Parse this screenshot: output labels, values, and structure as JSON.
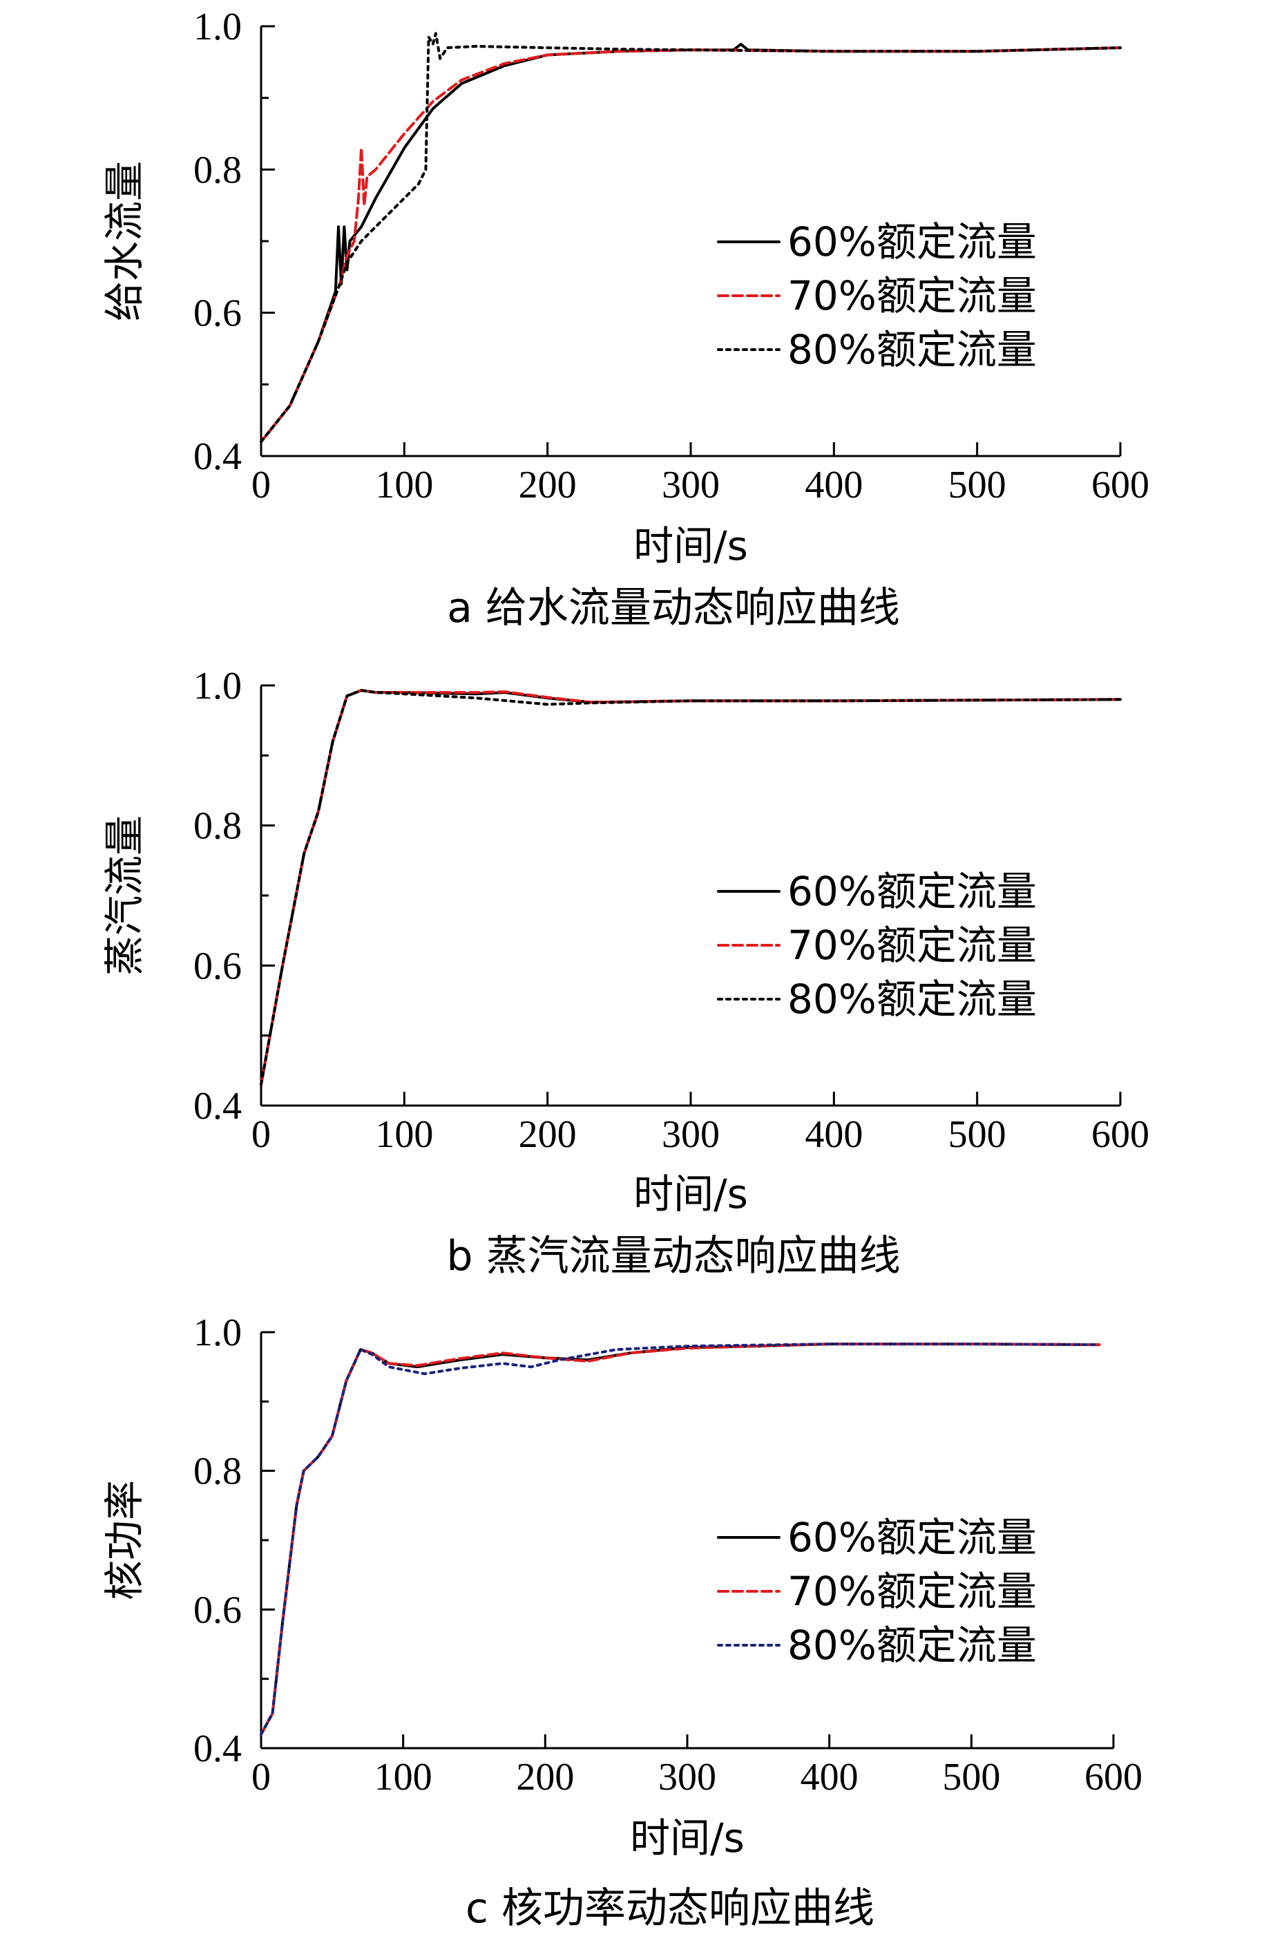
{
  "chart_data": [
    {
      "type": "line",
      "caption": "a 给水流量动态响应曲线",
      "xlabel": "时间/s",
      "ylabel": "给水流量",
      "xlim": [
        0,
        600
      ],
      "ylim": [
        0.4,
        1.0
      ],
      "xticks": [
        "0",
        "100",
        "200",
        "300",
        "400",
        "500",
        "600"
      ],
      "yticks": [
        "0.4",
        "0.6",
        "0.8",
        "1.0"
      ],
      "legend_position": "center-right",
      "series": [
        {
          "name": "60%额定流量",
          "color": "#000000",
          "dash": "solid",
          "points": [
            [
              0,
              0.42
            ],
            [
              20,
              0.47
            ],
            [
              40,
              0.56
            ],
            [
              52,
              0.63
            ],
            [
              54,
              0.72
            ],
            [
              56,
              0.64
            ],
            [
              58,
              0.72
            ],
            [
              60,
              0.66
            ],
            [
              62,
              0.7
            ],
            [
              70,
              0.72
            ],
            [
              80,
              0.76
            ],
            [
              100,
              0.83
            ],
            [
              120,
              0.885
            ],
            [
              140,
              0.92
            ],
            [
              170,
              0.945
            ],
            [
              200,
              0.96
            ],
            [
              250,
              0.965
            ],
            [
              300,
              0.967
            ],
            [
              330,
              0.967
            ],
            [
              335,
              0.975
            ],
            [
              340,
              0.967
            ],
            [
              400,
              0.965
            ],
            [
              500,
              0.965
            ],
            [
              600,
              0.97
            ]
          ]
        },
        {
          "name": "70%额定流量",
          "color": "#e41a1c",
          "dash": "dashed",
          "points": [
            [
              0,
              0.42
            ],
            [
              20,
              0.47
            ],
            [
              40,
              0.56
            ],
            [
              55,
              0.64
            ],
            [
              60,
              0.68
            ],
            [
              65,
              0.7
            ],
            [
              68,
              0.76
            ],
            [
              70,
              0.83
            ],
            [
              72,
              0.75
            ],
            [
              74,
              0.79
            ],
            [
              80,
              0.8
            ],
            [
              100,
              0.85
            ],
            [
              120,
              0.895
            ],
            [
              140,
              0.925
            ],
            [
              170,
              0.948
            ],
            [
              200,
              0.96
            ],
            [
              250,
              0.965
            ],
            [
              300,
              0.967
            ],
            [
              400,
              0.965
            ],
            [
              500,
              0.965
            ],
            [
              600,
              0.97
            ]
          ]
        },
        {
          "name": "80%额定流量",
          "color": "#000000",
          "dash": "dotted",
          "points": [
            [
              0,
              0.42
            ],
            [
              20,
              0.47
            ],
            [
              40,
              0.56
            ],
            [
              55,
              0.64
            ],
            [
              60,
              0.67
            ],
            [
              70,
              0.7
            ],
            [
              85,
              0.73
            ],
            [
              100,
              0.76
            ],
            [
              110,
              0.78
            ],
            [
              115,
              0.8
            ],
            [
              117,
              0.985
            ],
            [
              120,
              0.975
            ],
            [
              122,
              0.99
            ],
            [
              125,
              0.955
            ],
            [
              130,
              0.97
            ],
            [
              150,
              0.972
            ],
            [
              200,
              0.97
            ],
            [
              250,
              0.968
            ],
            [
              300,
              0.967
            ],
            [
              400,
              0.965
            ],
            [
              500,
              0.965
            ],
            [
              600,
              0.97
            ]
          ]
        }
      ]
    },
    {
      "type": "line",
      "caption": "b 蒸汽流量动态响应曲线",
      "xlabel": "时间/s",
      "ylabel": "蒸汽流量",
      "xlim": [
        0,
        600
      ],
      "ylim": [
        0.4,
        1.0
      ],
      "xticks": [
        "0",
        "100",
        "200",
        "300",
        "400",
        "500",
        "600"
      ],
      "yticks": [
        "0.4",
        "0.6",
        "0.8",
        "1.0"
      ],
      "legend_position": "center-right",
      "series": [
        {
          "name": "60%额定流量",
          "color": "#000000",
          "dash": "solid",
          "points": [
            [
              0,
              0.43
            ],
            [
              15,
              0.6
            ],
            [
              30,
              0.76
            ],
            [
              40,
              0.82
            ],
            [
              50,
              0.92
            ],
            [
              60,
              0.985
            ],
            [
              70,
              0.993
            ],
            [
              80,
              0.99
            ],
            [
              100,
              0.99
            ],
            [
              150,
              0.988
            ],
            [
              170,
              0.99
            ],
            [
              200,
              0.982
            ],
            [
              230,
              0.976
            ],
            [
              300,
              0.978
            ],
            [
              400,
              0.978
            ],
            [
              500,
              0.979
            ],
            [
              600,
              0.98
            ]
          ]
        },
        {
          "name": "70%额定流量",
          "color": "#e41a1c",
          "dash": "dashed",
          "points": [
            [
              0,
              0.43
            ],
            [
              15,
              0.6
            ],
            [
              30,
              0.76
            ],
            [
              40,
              0.82
            ],
            [
              50,
              0.92
            ],
            [
              60,
              0.985
            ],
            [
              70,
              0.993
            ],
            [
              80,
              0.99
            ],
            [
              100,
              0.99
            ],
            [
              150,
              0.99
            ],
            [
              170,
              0.991
            ],
            [
              200,
              0.983
            ],
            [
              230,
              0.976
            ],
            [
              300,
              0.978
            ],
            [
              400,
              0.978
            ],
            [
              500,
              0.979
            ],
            [
              600,
              0.98
            ]
          ]
        },
        {
          "name": "80%额定流量",
          "color": "#000000",
          "dash": "dotted",
          "points": [
            [
              0,
              0.43
            ],
            [
              15,
              0.6
            ],
            [
              30,
              0.76
            ],
            [
              40,
              0.82
            ],
            [
              50,
              0.92
            ],
            [
              60,
              0.985
            ],
            [
              70,
              0.993
            ],
            [
              80,
              0.99
            ],
            [
              100,
              0.988
            ],
            [
              150,
              0.982
            ],
            [
              200,
              0.973
            ],
            [
              230,
              0.975
            ],
            [
              300,
              0.978
            ],
            [
              400,
              0.978
            ],
            [
              500,
              0.979
            ],
            [
              600,
              0.98
            ]
          ]
        }
      ]
    },
    {
      "type": "line",
      "caption": "c 核功率动态响应曲线",
      "xlabel": "时间/s",
      "ylabel": "核功率",
      "xlim": [
        0,
        600
      ],
      "ylim": [
        0.4,
        1.0
      ],
      "xticks": [
        "0",
        "100",
        "200",
        "300",
        "400",
        "500",
        "600"
      ],
      "yticks": [
        "0.4",
        "0.6",
        "0.8",
        "1.0"
      ],
      "legend_position": "center-right",
      "series": [
        {
          "name": "60%额定流量",
          "color": "#000000",
          "dash": "solid",
          "points": [
            [
              0,
              0.42
            ],
            [
              8,
              0.45
            ],
            [
              15,
              0.58
            ],
            [
              25,
              0.75
            ],
            [
              30,
              0.8
            ],
            [
              40,
              0.82
            ],
            [
              50,
              0.85
            ],
            [
              60,
              0.93
            ],
            [
              70,
              0.975
            ],
            [
              78,
              0.97
            ],
            [
              90,
              0.955
            ],
            [
              110,
              0.95
            ],
            [
              140,
              0.96
            ],
            [
              170,
              0.968
            ],
            [
              200,
              0.963
            ],
            [
              230,
              0.96
            ],
            [
              260,
              0.97
            ],
            [
              300,
              0.978
            ],
            [
              350,
              0.98
            ],
            [
              400,
              0.983
            ],
            [
              500,
              0.983
            ],
            [
              590,
              0.982
            ]
          ]
        },
        {
          "name": "70%额定流量",
          "color": "#e41a1c",
          "dash": "dashed",
          "points": [
            [
              0,
              0.42
            ],
            [
              8,
              0.45
            ],
            [
              15,
              0.58
            ],
            [
              25,
              0.75
            ],
            [
              30,
              0.8
            ],
            [
              40,
              0.82
            ],
            [
              50,
              0.85
            ],
            [
              60,
              0.93
            ],
            [
              70,
              0.975
            ],
            [
              78,
              0.97
            ],
            [
              90,
              0.955
            ],
            [
              110,
              0.952
            ],
            [
              140,
              0.962
            ],
            [
              170,
              0.97
            ],
            [
              200,
              0.963
            ],
            [
              230,
              0.958
            ],
            [
              260,
              0.97
            ],
            [
              300,
              0.977
            ],
            [
              350,
              0.98
            ],
            [
              400,
              0.983
            ],
            [
              500,
              0.983
            ],
            [
              590,
              0.982
            ]
          ]
        },
        {
          "name": "80%额定流量",
          "color": "#1a237e",
          "dash": "dotted",
          "points": [
            [
              0,
              0.42
            ],
            [
              8,
              0.45
            ],
            [
              15,
              0.58
            ],
            [
              25,
              0.75
            ],
            [
              30,
              0.8
            ],
            [
              40,
              0.82
            ],
            [
              50,
              0.85
            ],
            [
              60,
              0.93
            ],
            [
              70,
              0.975
            ],
            [
              78,
              0.968
            ],
            [
              90,
              0.95
            ],
            [
              115,
              0.94
            ],
            [
              140,
              0.948
            ],
            [
              170,
              0.955
            ],
            [
              190,
              0.95
            ],
            [
              210,
              0.96
            ],
            [
              250,
              0.975
            ],
            [
              300,
              0.98
            ],
            [
              400,
              0.983
            ],
            [
              500,
              0.983
            ],
            [
              590,
              0.982
            ]
          ]
        }
      ]
    }
  ]
}
